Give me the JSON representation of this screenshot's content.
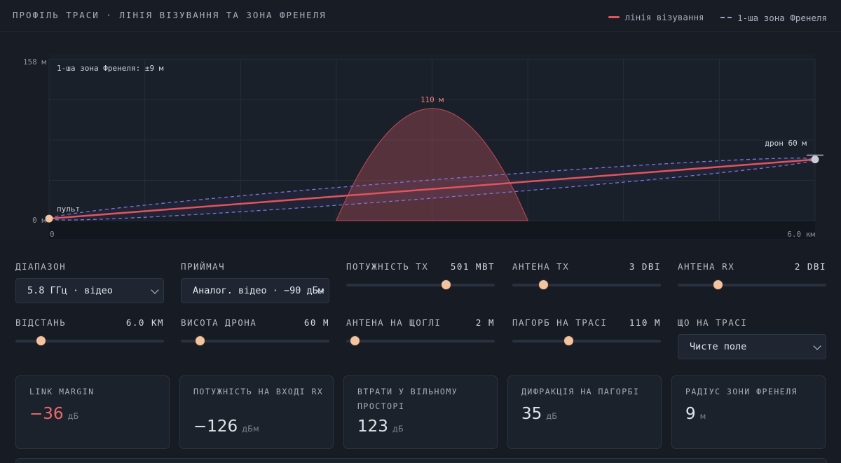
{
  "header": {
    "title": "ПРОФІЛЬ ТРАСИ · ЛІНІЯ ВІЗУВАННЯ ТА ЗОНА ФРЕНЕЛЯ",
    "legend": [
      {
        "label": "лінія візування",
        "color": "#e2545b",
        "style": "solid"
      },
      {
        "label": "1-ша зона Френеля",
        "color": "#9aa3c8",
        "style": "dashed"
      }
    ]
  },
  "chart_data": {
    "type": "area",
    "y_tick_labels": [
      "158 м",
      "0 м"
    ],
    "x_tick_labels": [
      "0",
      "6.0 км"
    ],
    "xlim": [
      0,
      6.0
    ],
    "ylim": [
      0,
      158
    ],
    "grid": true,
    "annotations": {
      "fresnel": "1-ша зона Френеля: ±9 м",
      "hill_peak": "110 м",
      "drone": "дрон 60 м",
      "console": "пульт"
    },
    "terrain": {
      "start": 2.25,
      "end": 3.75,
      "peak_x": 3.0,
      "peak_y": 110,
      "color": "#e2545b"
    },
    "line_of_sight": {
      "x": [
        0,
        6.0
      ],
      "y": [
        2,
        60
      ],
      "color": "#e2545b"
    },
    "fresnel_radius": 9,
    "fresnel_color": "#7b76d8"
  },
  "controls": {
    "range": {
      "label": "ДІАПАЗОН",
      "value": "5.8 ГГц · відео"
    },
    "receiver": {
      "label": "ПРИЙМАЧ",
      "value": "Аналог. відео · −90 дБм"
    },
    "tx_power": {
      "label": "ПОТУЖНІСТЬ TX",
      "value": "501 МВТ",
      "fraction": 0.67
    },
    "tx_antenna": {
      "label": "АНТЕНА TX",
      "value": "3 DBI",
      "fraction": 0.21
    },
    "rx_antenna": {
      "label": "АНТЕНА RX",
      "value": "2 DBI",
      "fraction": 0.27
    },
    "distance": {
      "label": "ВІДСТАНЬ",
      "value": "6.0 КМ",
      "fraction": 0.17
    },
    "drone_height": {
      "label": "ВИСОТА ДРОНА",
      "value": "60 М",
      "fraction": 0.13
    },
    "mast_antenna": {
      "label": "АНТЕНА НА ЩОГЛІ",
      "value": "2 М",
      "fraction": 0.06
    },
    "hill": {
      "label": "ПАГОРБ НА ТРАСІ",
      "value": "110 М",
      "fraction": 0.38
    },
    "terrain_type": {
      "label": "ЩО НА ТРАСІ",
      "value": "Чисте поле"
    }
  },
  "cards": [
    {
      "label": "LINK MARGIN",
      "value": "−36",
      "unit": "дБ",
      "negative": true
    },
    {
      "label": "ПОТУЖНІСТЬ НА ВХОДІ RX",
      "value": "−126",
      "unit": "дБм",
      "negative": false
    },
    {
      "label": "ВТРАТИ У ВІЛЬНОМУ ПРОСТОРІ",
      "value": "123",
      "unit": "дБ",
      "negative": false
    },
    {
      "label": "ДИФРАКЦІЯ НА ПАГОРБІ",
      "value": "35",
      "unit": "дБ",
      "negative": false
    },
    {
      "label": "РАДІУС ЗОНИ ФРЕНЕЛЯ",
      "value": "9",
      "unit": "м",
      "negative": false
    }
  ]
}
